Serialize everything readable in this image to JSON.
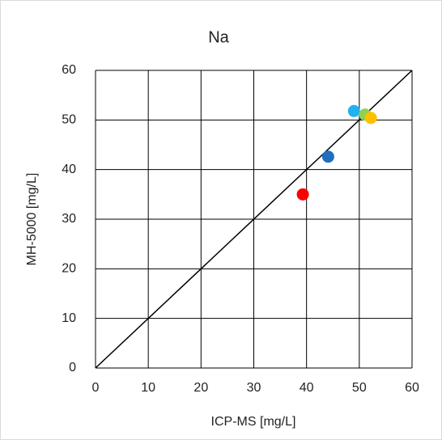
{
  "chart_data": {
    "type": "scatter",
    "title": "Na",
    "x_label": "ICP-MS [mg/L]",
    "y_label": "MH-5000 [mg/L]",
    "xlim": [
      0,
      60
    ],
    "ylim": [
      0,
      60
    ],
    "xticks": [
      0,
      10,
      20,
      30,
      40,
      50,
      60
    ],
    "yticks": [
      0,
      10,
      20,
      30,
      40,
      50,
      60
    ],
    "grid": true,
    "line": {
      "x": [
        0,
        60
      ],
      "y": [
        0,
        60
      ],
      "color": "#000000"
    },
    "series": [
      {
        "color": "#ff0000",
        "x": [
          39.3
        ],
        "values": [
          35.0
        ]
      },
      {
        "color": "#1f6fbf",
        "x": [
          44.1
        ],
        "values": [
          42.6
        ]
      },
      {
        "color": "#22b0f0",
        "x": [
          49.0
        ],
        "values": [
          51.8
        ]
      },
      {
        "color": "#92d050",
        "x": [
          51.1
        ],
        "values": [
          51.1
        ]
      },
      {
        "color": "#ffc000",
        "x": [
          52.2
        ],
        "values": [
          50.4
        ]
      }
    ]
  }
}
